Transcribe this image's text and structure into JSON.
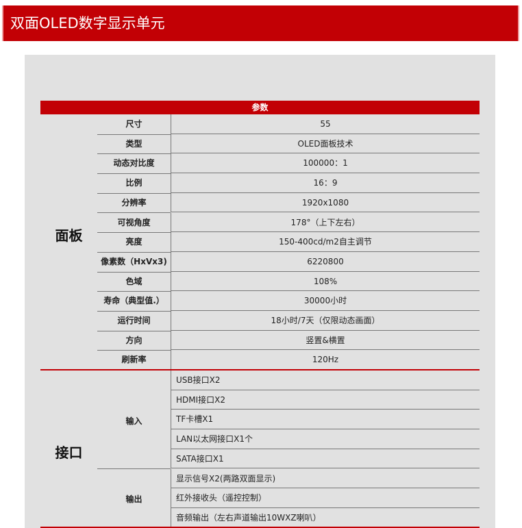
{
  "title": "双面OLED数字显示单元",
  "table_header": "参数",
  "panel": {
    "group": "面板",
    "rows": [
      {
        "label": "尺寸",
        "value": "55"
      },
      {
        "label": "类型",
        "value": "OLED面板技术"
      },
      {
        "label": "动态对比度",
        "value": "100000：1"
      },
      {
        "label": "比例",
        "value": "16：9"
      },
      {
        "label": "分辨率",
        "value": "1920x1080"
      },
      {
        "label": "可视角度",
        "value": "178°（上下左右）"
      },
      {
        "label": "亮度",
        "value": "150-400cd/m2自主调节"
      },
      {
        "label": "像素数（HxVx3)",
        "value": "6220800"
      },
      {
        "label": "色域",
        "value": "108%"
      },
      {
        "label": "寿命（典型值.）",
        "value": "30000小时"
      },
      {
        "label": "运行时间",
        "value": "18小时/7天（仅限动态画面）"
      },
      {
        "label": "方向",
        "value": "竖置&横置"
      },
      {
        "label": "刷新率",
        "value": "120Hz"
      }
    ]
  },
  "interface": {
    "group": "接口",
    "input": {
      "label": "输入",
      "items": [
        "USB接口X2",
        "HDMI接口X2",
        "TF卡槽X1",
        "LAN以太网接口X1个",
        "SATA接口X1"
      ]
    },
    "output": {
      "label": "输出",
      "items": [
        "显示信号X2(两路双面显示)",
        "红外接收头（遥控控制）",
        "音频输出（左右声道输出10WXZ喇叭）"
      ]
    }
  }
}
